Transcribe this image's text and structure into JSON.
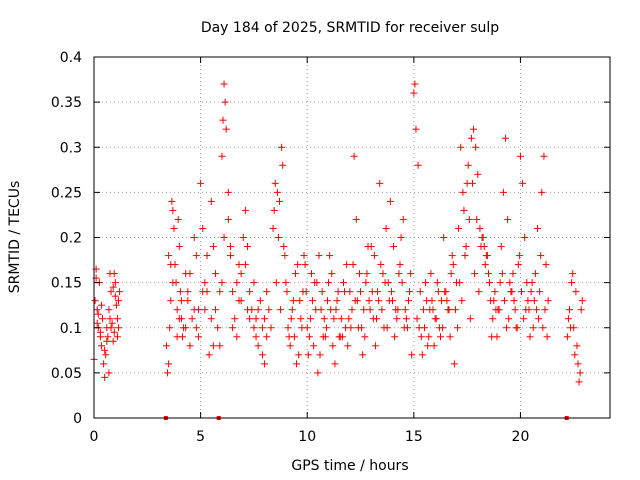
{
  "chart_data": {
    "type": "scatter",
    "title": "Day 184 of 2025, SRMTID for receiver sulp",
    "xlabel": "GPS time / hours",
    "ylabel": "SRMTID / TECUs",
    "xlim": [
      0,
      24.2
    ],
    "ylim": [
      0,
      0.4
    ],
    "grid": true,
    "marker": "+",
    "color": "#ff0000",
    "x_ticks": [
      0,
      5,
      10,
      15,
      20
    ],
    "x_tick_labels": [
      "0",
      "5",
      "10",
      "15",
      "20"
    ],
    "y_ticks": [
      0,
      0.05,
      0.1,
      0.15,
      0.2,
      0.25,
      0.3,
      0.35,
      0.4
    ],
    "y_tick_labels": [
      "0",
      "0.05",
      "0.1",
      "0.15",
      "0.2",
      "0.25",
      "0.3",
      "0.35",
      "0.4"
    ],
    "zero_markers_x": [
      3.37,
      5.85,
      22.17
    ],
    "series": [
      {
        "name": "SRMTID",
        "x": [
          0.0,
          0.05,
          0.1,
          0.15,
          0.2,
          0.25,
          0.3,
          0.35,
          0.4,
          0.45,
          0.5,
          0.55,
          0.6,
          0.65,
          0.7,
          0.75,
          0.8,
          0.85,
          0.9,
          0.95,
          1.0,
          1.05,
          1.1,
          1.15,
          1.2,
          0.1,
          0.2,
          0.3,
          0.5,
          0.7,
          0.8,
          0.9,
          1.0,
          1.1,
          0.15,
          0.35,
          0.6,
          0.75,
          0.95,
          1.15,
          3.4,
          3.45,
          3.5,
          3.55,
          3.6,
          3.65,
          3.7,
          3.75,
          3.8,
          3.85,
          3.9,
          3.95,
          4.0,
          4.05,
          4.1,
          4.15,
          4.2,
          4.3,
          4.4,
          4.5,
          4.6,
          4.7,
          4.8,
          4.9,
          5.0,
          5.1,
          5.2,
          5.3,
          5.4,
          5.5,
          5.6,
          5.7,
          5.8,
          5.9,
          6.0,
          6.05,
          6.1,
          6.15,
          6.2,
          6.3,
          6.4,
          6.5,
          6.6,
          6.7,
          6.8,
          6.9,
          7.0,
          7.1,
          7.2,
          7.3,
          7.4,
          7.5,
          7.6,
          7.7,
          7.8,
          7.9,
          8.0,
          8.1,
          8.2,
          8.3,
          3.5,
          3.7,
          3.9,
          4.1,
          4.3,
          4.5,
          4.7,
          4.9,
          5.1,
          5.3,
          5.5,
          5.7,
          5.9,
          6.1,
          6.3,
          6.5,
          6.7,
          6.9,
          7.1,
          7.3,
          7.5,
          7.7,
          7.9,
          8.1,
          3.6,
          4.0,
          4.4,
          4.8,
          5.2,
          5.6,
          6.0,
          6.4,
          6.8,
          7.2,
          7.6,
          8.0,
          8.4,
          8.5,
          8.6,
          8.7,
          8.8,
          8.9,
          9.0,
          9.1,
          9.2,
          9.3,
          9.4,
          9.5,
          9.6,
          9.7,
          9.8,
          9.9,
          10.0,
          10.1,
          10.2,
          10.3,
          10.4,
          10.5,
          10.6,
          10.7,
          10.8,
          10.9,
          11.0,
          11.1,
          11.2,
          11.3,
          11.4,
          11.5,
          11.6,
          11.7,
          11.8,
          11.9,
          12.0,
          12.1,
          12.2,
          12.3,
          12.4,
          12.5,
          12.6,
          12.7,
          12.8,
          12.9,
          13.0,
          13.1,
          13.2,
          13.3,
          13.4,
          13.5,
          13.6,
          13.7,
          13.8,
          13.9,
          14.0,
          14.1,
          14.2,
          14.3,
          14.4,
          14.5,
          14.6,
          14.7,
          14.8,
          14.9,
          8.45,
          8.65,
          8.85,
          9.05,
          9.25,
          9.45,
          9.65,
          9.85,
          10.05,
          10.25,
          10.45,
          10.65,
          10.85,
          11.05,
          11.25,
          11.45,
          11.65,
          11.85,
          12.05,
          12.25,
          12.45,
          12.65,
          12.85,
          13.05,
          13.25,
          13.45,
          13.65,
          13.85,
          14.05,
          14.25,
          14.45,
          14.65,
          14.85,
          8.55,
          8.75,
          8.95,
          9.15,
          9.35,
          9.55,
          9.75,
          9.95,
          10.15,
          10.35,
          10.55,
          10.75,
          10.95,
          11.15,
          11.35,
          11.55,
          11.75,
          11.95,
          12.15,
          12.35,
          12.55,
          12.75,
          12.95,
          13.15,
          13.35,
          13.55,
          13.75,
          13.95,
          14.15,
          14.35,
          14.55,
          14.75,
          15.0,
          15.05,
          15.1,
          15.2,
          15.3,
          15.4,
          15.5,
          15.6,
          15.7,
          15.8,
          15.9,
          16.0,
          16.1,
          16.2,
          16.3,
          16.4,
          16.5,
          16.6,
          16.7,
          16.8,
          16.9,
          17.0,
          17.1,
          17.2,
          17.3,
          17.4,
          17.5,
          17.6,
          17.7,
          17.8,
          17.9,
          18.0,
          18.1,
          18.2,
          18.3,
          18.4,
          18.5,
          18.6,
          18.7,
          18.8,
          18.9,
          19.0,
          19.1,
          19.2,
          19.3,
          19.4,
          19.5,
          19.6,
          19.7,
          19.8,
          19.9,
          20.0,
          20.1,
          20.2,
          20.3,
          20.4,
          20.5,
          20.6,
          20.7,
          20.8,
          20.9,
          21.0,
          21.1,
          21.2,
          21.3,
          15.15,
          15.35,
          15.55,
          15.75,
          15.95,
          16.15,
          16.35,
          16.55,
          16.75,
          16.95,
          17.15,
          17.35,
          17.55,
          17.75,
          17.95,
          18.15,
          18.35,
          18.55,
          18.75,
          18.95,
          19.15,
          19.35,
          19.55,
          19.75,
          19.95,
          20.15,
          20.35,
          20.55,
          20.75,
          20.95,
          21.15,
          15.25,
          15.45,
          15.65,
          15.85,
          16.05,
          16.25,
          16.45,
          16.65,
          16.85,
          17.05,
          17.25,
          17.45,
          17.65,
          17.85,
          18.05,
          18.25,
          18.45,
          18.65,
          18.85,
          19.05,
          19.25,
          19.45,
          19.65,
          19.85,
          20.05,
          20.25,
          20.45,
          20.65,
          20.85,
          21.05,
          21.25,
          22.2,
          22.3,
          22.4,
          22.5,
          22.6,
          22.7,
          22.8,
          22.9,
          22.25,
          22.45,
          22.65,
          22.85,
          22.35,
          22.55,
          22.75
        ],
        "y": [
          0.065,
          0.13,
          0.165,
          0.12,
          0.1,
          0.15,
          0.09,
          0.08,
          0.11,
          0.06,
          0.045,
          0.07,
          0.1,
          0.09,
          0.12,
          0.16,
          0.14,
          0.105,
          0.085,
          0.095,
          0.15,
          0.125,
          0.11,
          0.13,
          0.14,
          0.155,
          0.115,
          0.095,
          0.075,
          0.05,
          0.1,
          0.145,
          0.135,
          0.09,
          0.105,
          0.125,
          0.085,
          0.11,
          0.16,
          0.1,
          0.08,
          0.05,
          0.06,
          0.1,
          0.13,
          0.24,
          0.23,
          0.21,
          0.17,
          0.15,
          0.12,
          0.22,
          0.19,
          0.14,
          0.11,
          0.09,
          0.1,
          0.16,
          0.13,
          0.08,
          0.11,
          0.2,
          0.18,
          0.12,
          0.26,
          0.21,
          0.15,
          0.14,
          0.07,
          0.24,
          0.19,
          0.12,
          0.1,
          0.14,
          0.29,
          0.33,
          0.37,
          0.35,
          0.32,
          0.25,
          0.18,
          0.14,
          0.11,
          0.09,
          0.17,
          0.16,
          0.2,
          0.23,
          0.19,
          0.14,
          0.12,
          0.1,
          0.11,
          0.08,
          0.13,
          0.07,
          0.06,
          0.09,
          0.12,
          0.1,
          0.18,
          0.15,
          0.09,
          0.13,
          0.1,
          0.16,
          0.12,
          0.09,
          0.14,
          0.18,
          0.11,
          0.16,
          0.08,
          0.2,
          0.22,
          0.1,
          0.15,
          0.13,
          0.17,
          0.11,
          0.15,
          0.12,
          0.1,
          0.14,
          0.17,
          0.11,
          0.14,
          0.1,
          0.12,
          0.08,
          0.15,
          0.19,
          0.13,
          0.12,
          0.09,
          0.11,
          0.21,
          0.26,
          0.25,
          0.24,
          0.3,
          0.19,
          0.15,
          0.1,
          0.08,
          0.12,
          0.09,
          0.06,
          0.07,
          0.11,
          0.14,
          0.17,
          0.1,
          0.09,
          0.16,
          0.08,
          0.12,
          0.05,
          0.07,
          0.14,
          0.11,
          0.1,
          0.15,
          0.12,
          0.08,
          0.06,
          0.13,
          0.09,
          0.11,
          0.15,
          0.1,
          0.08,
          0.14,
          0.12,
          0.29,
          0.22,
          0.1,
          0.14,
          0.07,
          0.09,
          0.16,
          0.13,
          0.19,
          0.11,
          0.08,
          0.14,
          0.26,
          0.12,
          0.1,
          0.21,
          0.15,
          0.24,
          0.13,
          0.09,
          0.11,
          0.16,
          0.2,
          0.22,
          0.12,
          0.1,
          0.14,
          0.07,
          0.23,
          0.2,
          0.28,
          0.14,
          0.11,
          0.16,
          0.13,
          0.18,
          0.07,
          0.13,
          0.15,
          0.12,
          0.09,
          0.18,
          0.11,
          0.14,
          0.09,
          0.17,
          0.1,
          0.13,
          0.16,
          0.12,
          0.19,
          0.14,
          0.11,
          0.17,
          0.15,
          0.13,
          0.19,
          0.12,
          0.15,
          0.11,
          0.16,
          0.15,
          0.12,
          0.18,
          0.09,
          0.13,
          0.17,
          0.1,
          0.14,
          0.11,
          0.15,
          0.18,
          0.09,
          0.13,
          0.16,
          0.12,
          0.09,
          0.14,
          0.11,
          0.17,
          0.13,
          0.1,
          0.15,
          0.12,
          0.18,
          0.13,
          0.16,
          0.1,
          0.14,
          0.12,
          0.17,
          0.1,
          0.13,
          0.36,
          0.37,
          0.32,
          0.28,
          0.14,
          0.07,
          0.1,
          0.13,
          0.09,
          0.16,
          0.12,
          0.11,
          0.15,
          0.1,
          0.13,
          0.2,
          0.14,
          0.12,
          0.09,
          0.18,
          0.06,
          0.15,
          0.21,
          0.3,
          0.25,
          0.18,
          0.26,
          0.22,
          0.31,
          0.32,
          0.3,
          0.27,
          0.21,
          0.2,
          0.19,
          0.18,
          0.16,
          0.13,
          0.11,
          0.14,
          0.09,
          0.12,
          0.19,
          0.25,
          0.31,
          0.22,
          0.15,
          0.14,
          0.13,
          0.1,
          0.17,
          0.29,
          0.26,
          0.2,
          0.15,
          0.12,
          0.14,
          0.1,
          0.16,
          0.21,
          0.14,
          0.25,
          0.29,
          0.17,
          0.13,
          0.11,
          0.09,
          0.15,
          0.12,
          0.08,
          0.14,
          0.1,
          0.13,
          0.16,
          0.12,
          0.15,
          0.23,
          0.28,
          0.26,
          0.22,
          0.19,
          0.17,
          0.15,
          0.13,
          0.12,
          0.16,
          0.1,
          0.14,
          0.12,
          0.18,
          0.11,
          0.13,
          0.15,
          0.12,
          0.18,
          0.12,
          0.1,
          0.12,
          0.08,
          0.13,
          0.11,
          0.09,
          0.14,
          0.12,
          0.17,
          0.1,
          0.13,
          0.19,
          0.11,
          0.16,
          0.14,
          0.2,
          0.18,
          0.09,
          0.12,
          0.15,
          0.13,
          0.11,
          0.16,
          0.1,
          0.14,
          0.12,
          0.09,
          0.13,
          0.11,
          0.1,
          0.09,
          0.09,
          0.12,
          0.15,
          0.1,
          0.14,
          0.06,
          0.05,
          0.13,
          0.11,
          0.16,
          0.08,
          0.12,
          0.1,
          0.07,
          0.04
        ]
      }
    ]
  }
}
